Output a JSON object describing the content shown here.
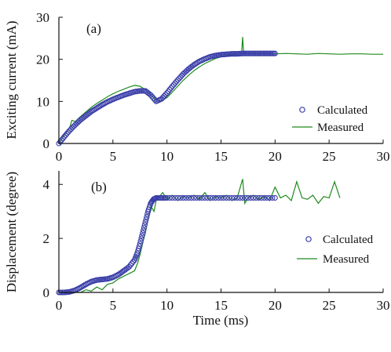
{
  "figure": {
    "xlabel": "Time (ms)"
  },
  "colors": {
    "calculated": "#3a3ea8",
    "measured": "#1f8a1f",
    "axis": "#111111"
  },
  "chart_data": [
    {
      "type": "scatter",
      "panel_label": "(a)",
      "ylabel": "Exciting current (mA)",
      "xlim": [
        0,
        30
      ],
      "ylim": [
        0,
        30
      ],
      "x_ticks": [
        0,
        5,
        10,
        15,
        20,
        25,
        30
      ],
      "y_ticks": [
        0,
        10,
        20,
        30
      ],
      "legend_position": "bottom-right",
      "series": [
        {
          "name": "Calculated",
          "marker": "circle",
          "x": [
            0,
            0.5,
            1,
            1.5,
            2,
            2.5,
            3,
            3.5,
            4,
            4.5,
            5,
            5.5,
            6,
            6.5,
            7,
            7.5,
            8,
            8.5,
            9,
            9.5,
            10,
            10.5,
            11,
            11.5,
            12,
            12.5,
            13,
            13.5,
            14,
            14.5,
            15,
            15.5,
            16,
            16.5,
            17,
            17.5,
            18,
            18.5,
            19,
            19.5,
            20
          ],
          "y": [
            0,
            1.6,
            3.1,
            4.4,
            5.6,
            6.6,
            7.6,
            8.4,
            9.2,
            9.9,
            10.5,
            11.0,
            11.5,
            11.9,
            12.3,
            12.5,
            12.5,
            11.5,
            10.0,
            10.6,
            12.0,
            13.6,
            15.1,
            16.5,
            17.7,
            18.7,
            19.5,
            20.1,
            20.6,
            20.9,
            21.1,
            21.2,
            21.3,
            21.3,
            21.4,
            21.4,
            21.4,
            21.4,
            21.4,
            21.4,
            21.4
          ]
        },
        {
          "name": "Measured",
          "marker": "line",
          "x": [
            0,
            0.5,
            1,
            1.2,
            1.5,
            2,
            2.5,
            3,
            3.5,
            4,
            4.5,
            5,
            5.5,
            6,
            6.5,
            7,
            7.5,
            8,
            8.5,
            9,
            9.5,
            10,
            10.5,
            11,
            11.5,
            12,
            12.5,
            13,
            13.5,
            14,
            14.5,
            15,
            15.5,
            16,
            16.5,
            16.9,
            17.0,
            17.1,
            17.5,
            18,
            19,
            20,
            21,
            22,
            23,
            24,
            25,
            26,
            27,
            28,
            29,
            30
          ],
          "y": [
            0,
            2.0,
            3.8,
            5.5,
            5.2,
            6.4,
            7.5,
            8.6,
            9.5,
            10.3,
            11.1,
            11.8,
            12.4,
            12.9,
            13.4,
            13.8,
            13.6,
            12.8,
            11.6,
            10.3,
            10.1,
            10.9,
            12.2,
            13.6,
            15.0,
            16.2,
            17.3,
            18.2,
            19.0,
            19.6,
            20.2,
            20.6,
            20.9,
            21.1,
            21.2,
            21.3,
            25.3,
            21.3,
            21.4,
            21.3,
            21.4,
            21.3,
            21.4,
            21.3,
            21.2,
            21.4,
            21.3,
            21.2,
            21.3,
            21.3,
            21.2,
            21.2
          ]
        }
      ]
    },
    {
      "type": "scatter",
      "panel_label": "(b)",
      "ylabel": "Displacement (degree)",
      "xlim": [
        0,
        30
      ],
      "ylim": [
        0,
        4.5
      ],
      "x_ticks": [
        0,
        5,
        10,
        15,
        20,
        25,
        30
      ],
      "y_ticks": [
        0,
        2,
        4
      ],
      "legend_position": "center-right",
      "series": [
        {
          "name": "Calculated",
          "marker": "circle",
          "x": [
            0,
            0.5,
            1,
            1.5,
            2,
            2.5,
            3,
            3.5,
            4,
            4.5,
            5,
            5.5,
            6,
            6.5,
            7,
            7.25,
            7.5,
            7.75,
            8,
            8.25,
            8.5,
            8.75,
            9,
            9.5,
            10,
            11,
            12,
            13,
            14,
            15,
            16,
            17,
            18,
            19,
            20
          ],
          "y": [
            0,
            0,
            0.02,
            0.08,
            0.18,
            0.3,
            0.4,
            0.46,
            0.48,
            0.5,
            0.56,
            0.66,
            0.8,
            0.95,
            1.2,
            1.45,
            1.8,
            2.2,
            2.6,
            3.0,
            3.3,
            3.45,
            3.5,
            3.5,
            3.5,
            3.5,
            3.5,
            3.5,
            3.5,
            3.5,
            3.5,
            3.5,
            3.5,
            3.5,
            3.5
          ]
        },
        {
          "name": "Measured",
          "marker": "line",
          "x": [
            0,
            1,
            2,
            2.5,
            3,
            3.5,
            4,
            4.5,
            5,
            5.5,
            6,
            6.5,
            7,
            7.3,
            7.5,
            7.8,
            8,
            8.3,
            8.5,
            8.8,
            9,
            9.3,
            9.6,
            10,
            10.5,
            11,
            11.5,
            12,
            12.5,
            13,
            13.5,
            14,
            14.5,
            15,
            15.5,
            16,
            16.5,
            17,
            17.2,
            17.5,
            18,
            18.5,
            19,
            19.5,
            20,
            20.5,
            21,
            21.5,
            22,
            22.5,
            23,
            23.5,
            24,
            24.5,
            25,
            25.5,
            26
          ],
          "y": [
            0,
            0,
            0,
            0.1,
            0.05,
            0.2,
            0.1,
            0.3,
            0.35,
            0.5,
            0.6,
            0.7,
            0.8,
            1.1,
            1.4,
            1.9,
            2.2,
            2.8,
            3.2,
            3.0,
            3.4,
            3.55,
            3.7,
            3.45,
            3.6,
            3.4,
            3.55,
            3.5,
            3.6,
            3.45,
            3.7,
            3.4,
            3.55,
            3.5,
            3.6,
            3.4,
            3.5,
            4.2,
            3.3,
            3.5,
            3.6,
            3.45,
            3.55,
            3.4,
            3.9,
            3.5,
            3.6,
            3.4,
            4.1,
            3.5,
            3.45,
            3.6,
            3.3,
            3.55,
            3.5,
            4.1,
            3.5
          ]
        }
      ]
    }
  ]
}
